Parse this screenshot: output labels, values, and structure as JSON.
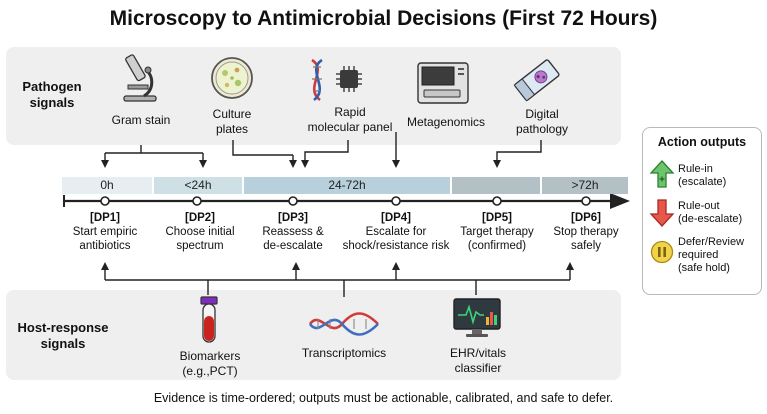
{
  "title": "Microscopy to Antimicrobial Decisions (First 72 Hours)",
  "pathogen_band": {
    "label": "Pathogen\nsignals"
  },
  "host_band": {
    "label": "Host-response\nsignals"
  },
  "pathogen_sources": [
    {
      "label": "Gram stain",
      "icon": "microscope-icon"
    },
    {
      "label": "Culture\nplates",
      "icon": "petri-dish-icon"
    },
    {
      "label": "Rapid\nmolecular panel",
      "icon": "dna-chip-icon"
    },
    {
      "label": "Metagenomics",
      "icon": "sequencer-icon"
    },
    {
      "label": "Digital\npathology",
      "icon": "slide-icon"
    }
  ],
  "host_sources": [
    {
      "label": "Biomarkers\n(e.g.,PCT)",
      "icon": "blood-tube-icon"
    },
    {
      "label": "Transcriptomics",
      "icon": "rna-icon"
    },
    {
      "label": "EHR/vitals\nclassifier",
      "icon": "monitor-icon"
    }
  ],
  "phases": [
    {
      "label": "0h",
      "color": "#e6eef1"
    },
    {
      "label": "<24h",
      "color": "#cfdfe6"
    },
    {
      "label": "24-72h",
      "color": "#b8d0dc"
    },
    {
      "label": "",
      "color": "#b3c1c7"
    },
    {
      "label": ">72h",
      "color": "#b3c1c7"
    }
  ],
  "decision_points": [
    {
      "id": "[DP1]",
      "text": "Start empiric\nantibiotics"
    },
    {
      "id": "[DP2]",
      "text": "Choose initial\nspectrum"
    },
    {
      "id": "[DP3]",
      "text": "Reassess &\nde-escalate"
    },
    {
      "id": "[DP4]",
      "text": "Escalate for\nshock/resistance risk"
    },
    {
      "id": "[DP5]",
      "text": "Target therapy\n(confirmed)"
    },
    {
      "id": "[DP6]",
      "text": "Stop therapy\nsafely"
    }
  ],
  "legend": {
    "title": "Action outputs",
    "items": [
      {
        "text": "Rule-in\n(escalate)",
        "icon": "arrow-up-icon",
        "color": "#6cc46c"
      },
      {
        "text": "Rule-out\n(de-escalate)",
        "icon": "arrow-down-icon",
        "color": "#e8584a"
      },
      {
        "text": "Defer/Review\nrequired\n(safe hold)",
        "icon": "pause-icon",
        "color": "#f3d24b"
      }
    ]
  },
  "footer": "Evidence is time-ordered; outputs must be actionable, calibrated, and safe to defer."
}
